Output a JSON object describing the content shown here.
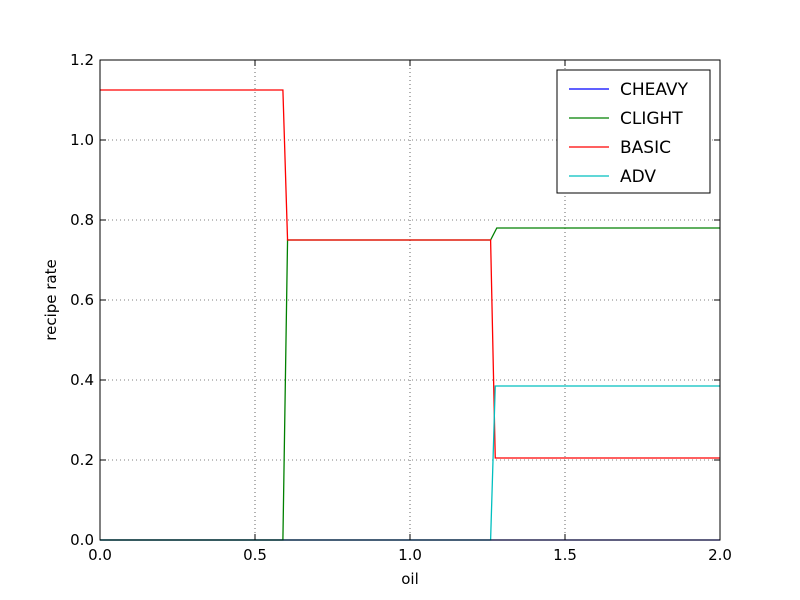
{
  "chart_data": {
    "type": "line",
    "title": "",
    "xlabel": "oil",
    "ylabel": "recipe rate",
    "xlim": [
      0.0,
      2.0
    ],
    "ylim": [
      0.0,
      1.2
    ],
    "xticks": [
      0.0,
      0.5,
      1.0,
      1.5,
      2.0
    ],
    "xtick_labels": [
      "0.0",
      "0.5",
      "1.0",
      "1.5",
      "2.0"
    ],
    "yticks": [
      0.0,
      0.2,
      0.4,
      0.6,
      0.8,
      1.0,
      1.2
    ],
    "ytick_labels": [
      "0.0",
      "0.2",
      "0.4",
      "0.6",
      "0.8",
      "1.0",
      "1.2"
    ],
    "grid": true,
    "legend_position": "top-right",
    "series": [
      {
        "name": "CHEAVY",
        "color": "#0000ff",
        "x": [
          0.0,
          2.0
        ],
        "y": [
          0.0,
          0.0
        ]
      },
      {
        "name": "CLIGHT",
        "color": "#008000",
        "x": [
          0.0,
          0.59,
          0.605,
          1.26,
          1.28,
          2.0
        ],
        "y": [
          0.0,
          0.0,
          0.75,
          0.75,
          0.78,
          0.78
        ]
      },
      {
        "name": "BASIC",
        "color": "#ff0000",
        "x": [
          0.0,
          0.59,
          0.605,
          1.26,
          1.275,
          2.0
        ],
        "y": [
          1.125,
          1.125,
          0.75,
          0.75,
          0.205,
          0.205
        ]
      },
      {
        "name": "ADV",
        "color": "#00bfbf",
        "x": [
          0.0,
          1.26,
          1.275,
          2.0
        ],
        "y": [
          0.0,
          0.0,
          0.385,
          0.385
        ]
      }
    ]
  }
}
